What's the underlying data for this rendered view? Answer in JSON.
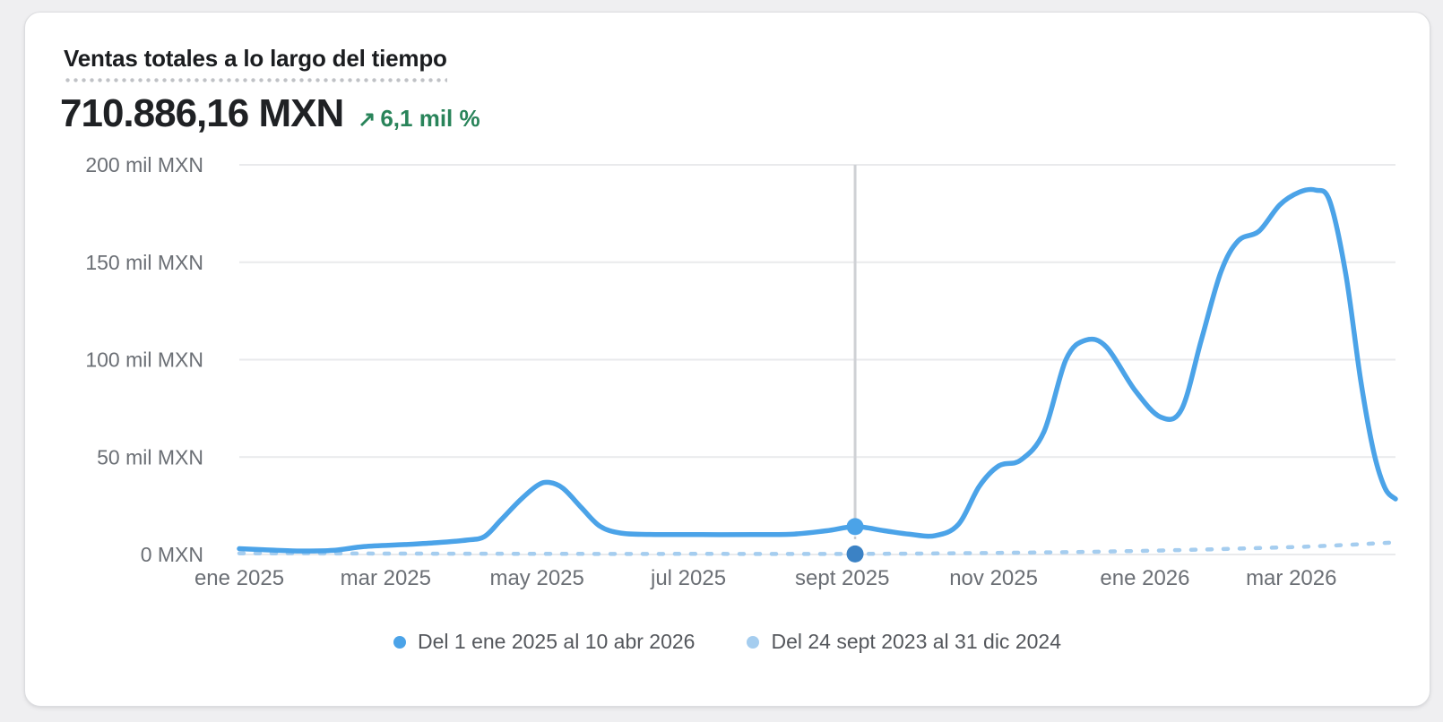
{
  "header": {
    "title": "Ventas totales a lo largo del tiempo",
    "value": "710.886,16 MXN",
    "change": {
      "direction": "up",
      "arrow": "↗",
      "label": "6,1 mil %",
      "color": "#29845a"
    }
  },
  "chart_data": {
    "type": "line",
    "title": "Ventas totales a lo largo del tiempo",
    "unit": "mil MXN (thousands of MXN)",
    "ylim_mil": [
      0,
      200
    ],
    "grid": true,
    "legend_position": "bottom-center",
    "y_ticks": [
      {
        "value_mil": 200,
        "label": "200 mil MXN"
      },
      {
        "value_mil": 150,
        "label": "150 mil MXN"
      },
      {
        "value_mil": 100,
        "label": "100 mil MXN"
      },
      {
        "value_mil": 50,
        "label": "50 mil MXN"
      },
      {
        "value_mil": 0,
        "label": "0 MXN"
      }
    ],
    "x_ticks": [
      {
        "f": 0.0,
        "label": "ene 2025"
      },
      {
        "f": 0.1266,
        "label": "mar 2025"
      },
      {
        "f": 0.2575,
        "label": "may 2025"
      },
      {
        "f": 0.3884,
        "label": "jul 2025"
      },
      {
        "f": 0.5215,
        "label": "sept 2025"
      },
      {
        "f": 0.6524,
        "label": "nov 2025"
      },
      {
        "f": 0.7833,
        "label": "ene 2026"
      },
      {
        "f": 0.9099,
        "label": "mar 2026"
      }
    ],
    "series": [
      {
        "name": "Del 1 ene 2025 al 10 abr 2026",
        "color": "#4ba3e8",
        "line_style": "solid",
        "points_f_vmil": [
          [
            0.0,
            3.0
          ],
          [
            0.02,
            2.5
          ],
          [
            0.05,
            1.8
          ],
          [
            0.081,
            2.1
          ],
          [
            0.108,
            4.1
          ],
          [
            0.143,
            5.1
          ],
          [
            0.17,
            6.0
          ],
          [
            0.197,
            7.4
          ],
          [
            0.212,
            9.2
          ],
          [
            0.226,
            17.5
          ],
          [
            0.243,
            28.0
          ],
          [
            0.258,
            35.5
          ],
          [
            0.268,
            37.0
          ],
          [
            0.28,
            34.0
          ],
          [
            0.296,
            24.0
          ],
          [
            0.312,
            14.5
          ],
          [
            0.33,
            11.0
          ],
          [
            0.355,
            10.3
          ],
          [
            0.4,
            10.2
          ],
          [
            0.445,
            10.2
          ],
          [
            0.48,
            10.5
          ],
          [
            0.508,
            12.2
          ],
          [
            0.533,
            14.3
          ],
          [
            0.558,
            12.2
          ],
          [
            0.58,
            10.4
          ],
          [
            0.602,
            9.7
          ],
          [
            0.622,
            15.5
          ],
          [
            0.64,
            35.0
          ],
          [
            0.657,
            45.5
          ],
          [
            0.676,
            48.5
          ],
          [
            0.696,
            63.0
          ],
          [
            0.715,
            100.0
          ],
          [
            0.732,
            110.0
          ],
          [
            0.75,
            106.5
          ],
          [
            0.775,
            84.0
          ],
          [
            0.797,
            70.5
          ],
          [
            0.815,
            74.5
          ],
          [
            0.832,
            110.0
          ],
          [
            0.849,
            145.0
          ],
          [
            0.864,
            161.0
          ],
          [
            0.882,
            166.0
          ],
          [
            0.9,
            179.5
          ],
          [
            0.917,
            186.0
          ],
          [
            0.931,
            187.0
          ],
          [
            0.943,
            181.5
          ],
          [
            0.957,
            144.0
          ],
          [
            0.97,
            89.0
          ],
          [
            0.981,
            53.0
          ],
          [
            0.991,
            34.0
          ],
          [
            1.0,
            28.5
          ]
        ]
      },
      {
        "name": "Del 24 sept 2023 al 31 dic 2024",
        "color": "#a5cdef",
        "line_style": "dashed",
        "points_f_vmil": [
          [
            0.0,
            0.6
          ],
          [
            0.1,
            0.5
          ],
          [
            0.2,
            0.4
          ],
          [
            0.3,
            0.3
          ],
          [
            0.4,
            0.3
          ],
          [
            0.533,
            0.3
          ],
          [
            0.65,
            0.8
          ],
          [
            0.75,
            1.5
          ],
          [
            0.85,
            2.8
          ],
          [
            0.93,
            4.2
          ],
          [
            1.0,
            6.2
          ]
        ]
      }
    ],
    "marker": {
      "f": 0.5326,
      "current_value_mil": 14.3,
      "previous_value_mil": 0.3,
      "line_color": "#cfd1d5",
      "current_dot_color": "#4ba3e8",
      "previous_dot_color": "#3b82c5"
    }
  },
  "legend": {
    "items": [
      {
        "label": "Del 1 ene 2025 al 10 abr 2026",
        "color": "#4ba3e8"
      },
      {
        "label": "Del 24 sept 2023 al 31 dic 2024",
        "color": "#a5cdef"
      }
    ]
  }
}
